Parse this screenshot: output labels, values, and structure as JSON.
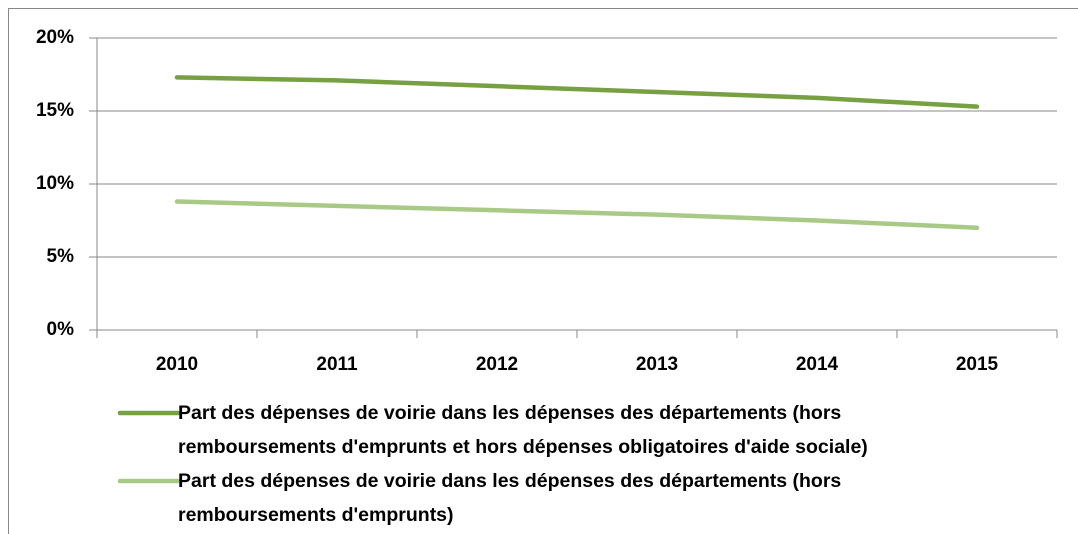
{
  "chart_data": {
    "type": "line",
    "categories": [
      "2010",
      "2011",
      "2012",
      "2013",
      "2014",
      "2015"
    ],
    "series": [
      {
        "name": "Part des dépenses de voirie dans les dépenses des départements (hors remboursements d'emprunts et hors dépenses obligatoires d'aide sociale)",
        "color": "#77a043",
        "values": [
          17.3,
          17.1,
          16.7,
          16.3,
          15.9,
          15.3
        ]
      },
      {
        "name": "Part des dépenses de voirie dans les dépenses des départements (hors remboursements d'emprunts)",
        "color": "#a9c987",
        "values": [
          8.8,
          8.5,
          8.2,
          7.9,
          7.5,
          7.0
        ]
      }
    ],
    "ylim": [
      0,
      20
    ],
    "yticks": [
      {
        "value": 0,
        "label": "0%"
      },
      {
        "value": 5,
        "label": "5%"
      },
      {
        "value": 10,
        "label": "10%"
      },
      {
        "value": 15,
        "label": "15%"
      },
      {
        "value": 20,
        "label": "20%"
      }
    ],
    "grid": true,
    "legend": "bottom"
  }
}
